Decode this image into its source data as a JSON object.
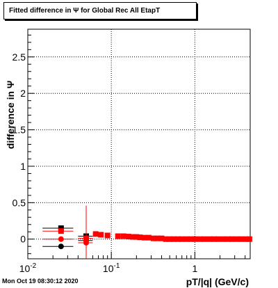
{
  "title": "Fitted difference in  Ψ  for Global Rec All EtapT",
  "timestamp": "Mon Oct 19 08:30:12 2020",
  "chart_data": {
    "type": "scatter",
    "title": "Fitted difference in  Ψ  for Global Rec All EtapT",
    "xlabel": "pT/|q| (GeV/c)",
    "ylabel": "difference in  Ψ",
    "xscale": "log",
    "xlim": [
      0.01,
      4.6
    ],
    "ylim": [
      -0.27,
      2.88
    ],
    "grid": true,
    "x_ticks": [
      {
        "value": 0.01,
        "base": "10",
        "exp": "-2"
      },
      {
        "value": 0.1,
        "base": "10",
        "exp": "-1"
      },
      {
        "value": 1,
        "base": "1",
        "exp": ""
      }
    ],
    "y_ticks": [
      {
        "value": 0,
        "label": "0"
      },
      {
        "value": 0.5,
        "label": "0.5"
      },
      {
        "value": 1,
        "label": "1"
      },
      {
        "value": 1.5,
        "label": "1.5"
      },
      {
        "value": 2,
        "label": "2"
      },
      {
        "value": 2.5,
        "label": "2.5"
      }
    ],
    "series": [
      {
        "color": "#000000",
        "marker": "square",
        "points": [
          {
            "x": 0.025,
            "y": 0.15,
            "xerr_lo": 0.01,
            "xerr_hi": 0.01,
            "yerr": 0.02
          },
          {
            "x": 0.05,
            "y": 0.04,
            "xerr_lo": 0.01,
            "xerr_hi": 0.01,
            "yerr": 0.02
          }
        ]
      },
      {
        "color": "#000000",
        "marker": "circle",
        "points": [
          {
            "x": 0.025,
            "y": -0.1,
            "xerr_lo": 0.01,
            "xerr_hi": 0.01,
            "yerr": 0.02
          },
          {
            "x": 0.05,
            "y": -0.02,
            "xerr_lo": 0.01,
            "xerr_hi": 0.01,
            "yerr": 0.02
          }
        ]
      },
      {
        "color": "#ff0000",
        "marker": "square",
        "points": [
          {
            "x": 0.025,
            "y": 0.11,
            "xerr_lo": 0.01,
            "xerr_hi": 0.01,
            "yerr": 0.03
          },
          {
            "x": 0.05,
            "y": 0.01,
            "xerr_lo": 0.01,
            "xerr_hi": 0.01,
            "yerr": 0.45
          },
          {
            "x": 0.065,
            "y": 0.07,
            "xerr_lo": 0.005,
            "xerr_hi": 0.005,
            "yerr": 0.02
          },
          {
            "x": 0.075,
            "y": 0.06,
            "xerr_lo": 0.005,
            "xerr_hi": 0.005,
            "yerr": 0.02
          },
          {
            "x": 0.09,
            "y": 0.05,
            "xerr_lo": 0.005,
            "xerr_hi": 0.005,
            "yerr": 0.02
          },
          {
            "x": 0.12,
            "y": 0.04,
            "xerr_lo": 0.005,
            "xerr_hi": 0.005,
            "yerr": 0.02
          },
          {
            "x": 0.14,
            "y": 0.04,
            "xerr_lo": 0.005,
            "xerr_hi": 0.005,
            "yerr": 0.02
          },
          {
            "x": 0.16,
            "y": 0.035,
            "xerr_lo": 0.005,
            "xerr_hi": 0.005,
            "yerr": 0.02
          },
          {
            "x": 0.18,
            "y": 0.03,
            "xerr_lo": 0.005,
            "xerr_hi": 0.005,
            "yerr": 0.02
          },
          {
            "x": 0.2,
            "y": 0.03,
            "xerr_lo": 0.005,
            "xerr_hi": 0.005,
            "yerr": 0.02
          },
          {
            "x": 0.22,
            "y": 0.025,
            "xerr_lo": 0.005,
            "xerr_hi": 0.005,
            "yerr": 0.02
          },
          {
            "x": 0.25,
            "y": 0.02,
            "xerr_lo": 0.005,
            "xerr_hi": 0.005,
            "yerr": 0.02
          },
          {
            "x": 0.28,
            "y": 0.02,
            "xerr_lo": 0.01,
            "xerr_hi": 0.01,
            "yerr": 0.02
          },
          {
            "x": 0.32,
            "y": 0.01,
            "xerr_lo": 0.01,
            "xerr_hi": 0.01,
            "yerr": 0.02
          },
          {
            "x": 0.36,
            "y": 0.01,
            "xerr_lo": 0.01,
            "xerr_hi": 0.01,
            "yerr": 0.02
          },
          {
            "x": 0.4,
            "y": 0.01,
            "xerr_lo": 0.01,
            "xerr_hi": 0.01,
            "yerr": 0.02
          },
          {
            "x": 0.45,
            "y": 0.0,
            "xerr_lo": 0.01,
            "xerr_hi": 0.01,
            "yerr": 0.02
          },
          {
            "x": 0.5,
            "y": 0.0,
            "xerr_lo": 0.01,
            "xerr_hi": 0.01,
            "yerr": 0.02
          },
          {
            "x": 0.56,
            "y": 0.0,
            "xerr_lo": 0.01,
            "xerr_hi": 0.01,
            "yerr": 0.02
          },
          {
            "x": 0.63,
            "y": 0.0,
            "xerr_lo": 0.02,
            "xerr_hi": 0.02,
            "yerr": 0.02
          },
          {
            "x": 0.7,
            "y": 0.0,
            "xerr_lo": 0.02,
            "xerr_hi": 0.02,
            "yerr": 0.02
          },
          {
            "x": 0.8,
            "y": 0.0,
            "xerr_lo": 0.02,
            "xerr_hi": 0.02,
            "yerr": 0.02
          },
          {
            "x": 0.9,
            "y": 0.0,
            "xerr_lo": 0.02,
            "xerr_hi": 0.02,
            "yerr": 0.02
          },
          {
            "x": 1.0,
            "y": 0.0,
            "xerr_lo": 0.03,
            "xerr_hi": 0.03,
            "yerr": 0.02
          },
          {
            "x": 1.15,
            "y": 0.0,
            "xerr_lo": 0.03,
            "xerr_hi": 0.03,
            "yerr": 0.02
          },
          {
            "x": 1.3,
            "y": 0.0,
            "xerr_lo": 0.04,
            "xerr_hi": 0.04,
            "yerr": 0.02
          },
          {
            "x": 1.5,
            "y": 0.0,
            "xerr_lo": 0.05,
            "xerr_hi": 0.05,
            "yerr": 0.02
          },
          {
            "x": 1.7,
            "y": 0.0,
            "xerr_lo": 0.05,
            "xerr_hi": 0.05,
            "yerr": 0.02
          },
          {
            "x": 1.9,
            "y": 0.0,
            "xerr_lo": 0.05,
            "xerr_hi": 0.05,
            "yerr": 0.02
          },
          {
            "x": 2.2,
            "y": 0.0,
            "xerr_lo": 0.1,
            "xerr_hi": 0.1,
            "yerr": 0.02
          },
          {
            "x": 2.5,
            "y": 0.0,
            "xerr_lo": 0.1,
            "xerr_hi": 0.1,
            "yerr": 0.02
          },
          {
            "x": 2.8,
            "y": 0.0,
            "xerr_lo": 0.1,
            "xerr_hi": 0.1,
            "yerr": 0.02
          },
          {
            "x": 3.2,
            "y": 0.0,
            "xerr_lo": 0.15,
            "xerr_hi": 0.15,
            "yerr": 0.02
          },
          {
            "x": 3.6,
            "y": 0.0,
            "xerr_lo": 0.15,
            "xerr_hi": 0.15,
            "yerr": 0.02
          },
          {
            "x": 4.1,
            "y": 0.0,
            "xerr_lo": 0.2,
            "xerr_hi": 0.2,
            "yerr": 0.02
          },
          {
            "x": 4.5,
            "y": 0.0,
            "xerr_lo": 0.1,
            "xerr_hi": 0.1,
            "yerr": 0.02
          }
        ]
      },
      {
        "color": "#ff0000",
        "marker": "circle",
        "points": [
          {
            "x": 0.025,
            "y": 0.0,
            "xerr_lo": 0.01,
            "xerr_hi": 0.01,
            "yerr": 0.02
          },
          {
            "x": 0.05,
            "y": -0.05,
            "xerr_lo": 0.01,
            "xerr_hi": 0.01,
            "yerr": 0.02
          }
        ]
      }
    ]
  }
}
